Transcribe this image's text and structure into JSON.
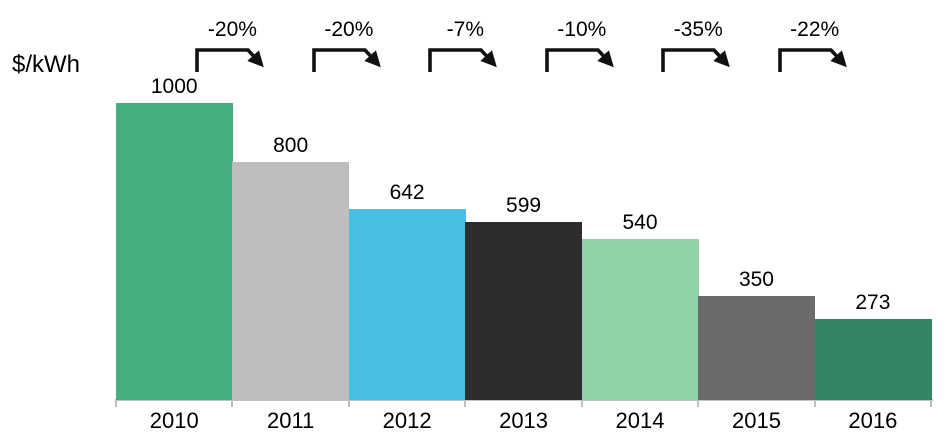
{
  "chart_data": {
    "type": "bar",
    "title": "",
    "ylabel": "$/kWh",
    "xlabel": "",
    "categories": [
      "2010",
      "2011",
      "2012",
      "2013",
      "2014",
      "2015",
      "2016"
    ],
    "values": [
      1000,
      800,
      642,
      599,
      540,
      350,
      273
    ],
    "value_labels": [
      "1000",
      "800",
      "642",
      "599",
      "540",
      "350",
      "273"
    ],
    "pct_changes": [
      "-20%",
      "-20%",
      "-7%",
      "-10%",
      "-35%",
      "-22%"
    ],
    "bar_colors": [
      "#46AF7D",
      "#BFBEBE",
      "#48BFE3",
      "#2E2C2C",
      "#92D2A8",
      "#6B6B6B",
      "#338663"
    ],
    "ylim": [
      0,
      1000
    ],
    "grid": false,
    "legend": false,
    "value_label_position": "above-bars",
    "pct_label_position": "above-plot-between-bars",
    "axis_color": "#BFBFBF",
    "text_color": "#000000",
    "arrow_color": "#111111"
  }
}
